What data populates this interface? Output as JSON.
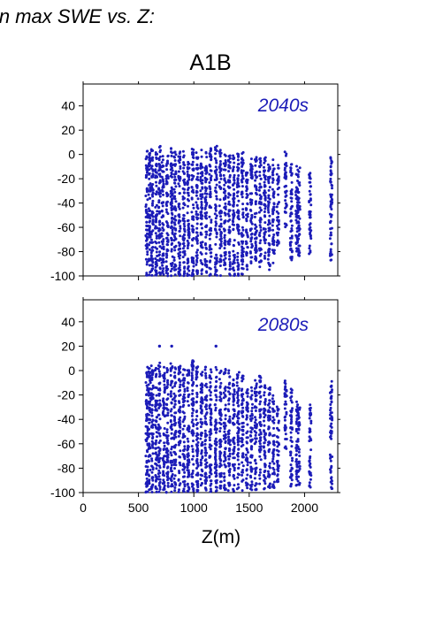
{
  "figure": {
    "caption": "in max SWE vs. Z:",
    "title": "A1B"
  },
  "colors": {
    "points": "#1c1cb8",
    "panel_label": "#1c1cb8",
    "axis": "#000000"
  },
  "chart_data": [
    {
      "type": "scatter",
      "panel_label": "2040s",
      "xlabel": "",
      "ylabel": "",
      "xlim": [
        0,
        2300
      ],
      "ylim": [
        -100,
        58
      ],
      "xticks": [
        0,
        500,
        1000,
        1500,
        2000
      ],
      "yticks": [
        -100,
        -80,
        -60,
        -40,
        -20,
        0,
        20,
        40
      ],
      "show_xtick_labels": false,
      "grid": false,
      "points_description_free": true,
      "columns": [
        {
          "x": 575,
          "ymin": -100,
          "ymax": 3
        },
        {
          "x": 600,
          "ymin": -100,
          "ymax": 2
        },
        {
          "x": 625,
          "ymin": -100,
          "ymax": 5
        },
        {
          "x": 660,
          "ymin": -100,
          "ymax": 4
        },
        {
          "x": 690,
          "ymin": -100,
          "ymax": 7
        },
        {
          "x": 720,
          "ymin": -100,
          "ymax": 2
        },
        {
          "x": 760,
          "ymin": -100,
          "ymax": 3
        },
        {
          "x": 800,
          "ymin": -100,
          "ymax": 8
        },
        {
          "x": 830,
          "ymin": -100,
          "ymax": 6
        },
        {
          "x": 870,
          "ymin": -100,
          "ymax": 4
        },
        {
          "x": 910,
          "ymin": -100,
          "ymax": 3
        },
        {
          "x": 950,
          "ymin": -100,
          "ymax": 2
        },
        {
          "x": 990,
          "ymin": -100,
          "ymax": 5
        },
        {
          "x": 1030,
          "ymin": -100,
          "ymax": 3
        },
        {
          "x": 1070,
          "ymin": -100,
          "ymax": 4
        },
        {
          "x": 1110,
          "ymin": -100,
          "ymax": 2
        },
        {
          "x": 1150,
          "ymin": -100,
          "ymax": 5
        },
        {
          "x": 1200,
          "ymin": -100,
          "ymax": 8
        },
        {
          "x": 1240,
          "ymin": -100,
          "ymax": 4
        },
        {
          "x": 1280,
          "ymin": -100,
          "ymax": 2
        },
        {
          "x": 1320,
          "ymin": -100,
          "ymax": 3
        },
        {
          "x": 1360,
          "ymin": -100,
          "ymax": 0
        },
        {
          "x": 1400,
          "ymin": -100,
          "ymax": 1
        },
        {
          "x": 1440,
          "ymin": -100,
          "ymax": 2
        },
        {
          "x": 1480,
          "ymin": -95,
          "ymax": -12
        },
        {
          "x": 1520,
          "ymin": -92,
          "ymax": -3
        },
        {
          "x": 1560,
          "ymin": -90,
          "ymax": -2
        },
        {
          "x": 1600,
          "ymin": -93,
          "ymax": -3
        },
        {
          "x": 1640,
          "ymin": -88,
          "ymax": -2
        },
        {
          "x": 1680,
          "ymin": -95,
          "ymax": -6
        },
        {
          "x": 1720,
          "ymin": -90,
          "ymax": -4
        },
        {
          "x": 1760,
          "ymin": -75,
          "ymax": -8
        },
        {
          "x": 1830,
          "ymin": -62,
          "ymax": 4
        },
        {
          "x": 1880,
          "ymin": -88,
          "ymax": -8
        },
        {
          "x": 1930,
          "ymin": -83,
          "ymax": -8
        },
        {
          "x": 1950,
          "ymin": -84,
          "ymax": -10
        },
        {
          "x": 2050,
          "ymin": -82,
          "ymax": -10
        },
        {
          "x": 2240,
          "ymin": -90,
          "ymax": -1
        }
      ]
    },
    {
      "type": "scatter",
      "panel_label": "2080s",
      "xlabel": "Z(m)",
      "ylabel": "",
      "xlim": [
        0,
        2300
      ],
      "ylim": [
        -100,
        58
      ],
      "xticks": [
        0,
        500,
        1000,
        1500,
        2000
      ],
      "yticks": [
        -100,
        -80,
        -60,
        -40,
        -20,
        0,
        20,
        40
      ],
      "xtick_labels": [
        "0",
        "500",
        "1000",
        "1500",
        "2000"
      ],
      "show_xtick_labels": true,
      "grid": false,
      "columns": [
        {
          "x": 575,
          "ymin": -100,
          "ymax": 4
        },
        {
          "x": 600,
          "ymin": -100,
          "ymax": 2
        },
        {
          "x": 625,
          "ymin": -100,
          "ymax": 4
        },
        {
          "x": 660,
          "ymin": -100,
          "ymax": 2
        },
        {
          "x": 690,
          "ymin": -100,
          "ymax": 7
        },
        {
          "x": 730,
          "ymin": -100,
          "ymax": 4
        },
        {
          "x": 760,
          "ymin": -100,
          "ymax": 2
        },
        {
          "x": 800,
          "ymin": -100,
          "ymax": 6
        },
        {
          "x": 830,
          "ymin": -100,
          "ymax": 3
        },
        {
          "x": 870,
          "ymin": -100,
          "ymax": 5
        },
        {
          "x": 910,
          "ymin": -100,
          "ymax": 2
        },
        {
          "x": 950,
          "ymin": -100,
          "ymax": 3
        },
        {
          "x": 990,
          "ymin": -100,
          "ymax": 8
        },
        {
          "x": 1030,
          "ymin": -100,
          "ymax": 4
        },
        {
          "x": 1070,
          "ymin": -100,
          "ymax": 2
        },
        {
          "x": 1110,
          "ymin": -100,
          "ymax": 4
        },
        {
          "x": 1150,
          "ymin": -100,
          "ymax": 2
        },
        {
          "x": 1200,
          "ymin": -100,
          "ymax": 5
        },
        {
          "x": 1240,
          "ymin": -100,
          "ymax": 3
        },
        {
          "x": 1280,
          "ymin": -100,
          "ymax": 2
        },
        {
          "x": 1320,
          "ymin": -100,
          "ymax": 0
        },
        {
          "x": 1360,
          "ymin": -100,
          "ymax": -2
        },
        {
          "x": 1400,
          "ymin": -100,
          "ymax": 0
        },
        {
          "x": 1440,
          "ymin": -100,
          "ymax": -3
        },
        {
          "x": 1480,
          "ymin": -98,
          "ymax": -15
        },
        {
          "x": 1520,
          "ymin": -98,
          "ymax": -12
        },
        {
          "x": 1560,
          "ymin": -98,
          "ymax": -8
        },
        {
          "x": 1600,
          "ymin": -98,
          "ymax": -3
        },
        {
          "x": 1640,
          "ymin": -98,
          "ymax": -12
        },
        {
          "x": 1680,
          "ymin": -98,
          "ymax": -14
        },
        {
          "x": 1720,
          "ymin": -96,
          "ymax": -20
        },
        {
          "x": 1760,
          "ymin": -92,
          "ymax": -28
        },
        {
          "x": 1830,
          "ymin": -65,
          "ymax": -4
        },
        {
          "x": 1880,
          "ymin": -97,
          "ymax": -14
        },
        {
          "x": 1930,
          "ymin": -95,
          "ymax": -24
        },
        {
          "x": 1950,
          "ymin": -95,
          "ymax": -30
        },
        {
          "x": 2050,
          "ymin": -97,
          "ymax": -28
        },
        {
          "x": 2240,
          "ymin": -98,
          "ymax": -8
        }
      ],
      "outliers": [
        {
          "x": 690,
          "y": 20
        },
        {
          "x": 800,
          "y": 20
        },
        {
          "x": 990,
          "y": 8
        },
        {
          "x": 1200,
          "y": 20
        }
      ]
    }
  ]
}
